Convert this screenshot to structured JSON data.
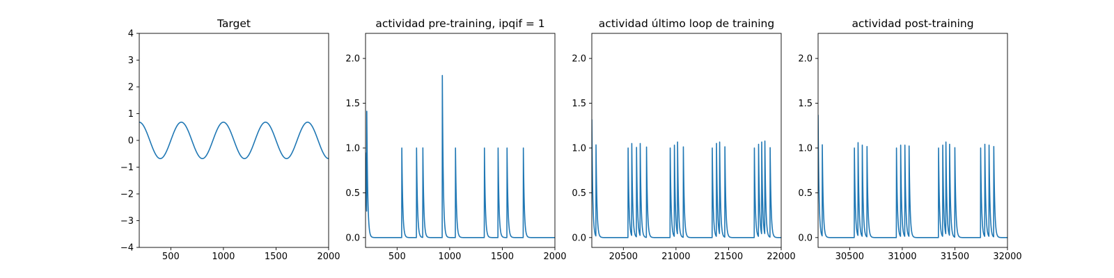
{
  "chart_data": [
    {
      "type": "line",
      "title": "Target",
      "xlim": [
        200,
        2000
      ],
      "ylim": [
        -4,
        4
      ],
      "xticks": [
        500,
        1000,
        1500,
        2000
      ],
      "yticks": [
        -4,
        -3,
        -2,
        -1,
        0,
        1,
        2,
        3,
        4
      ],
      "xlabel": "",
      "ylabel": "",
      "grid": false,
      "series": [
        {
          "color": "#1f77b4",
          "function": {
            "kind": "cosine",
            "amplitude": 0.68,
            "period": 400,
            "phase_x": 200
          }
        }
      ]
    },
    {
      "type": "line",
      "title": "actividad pre-training, ipqif = 1",
      "xlim": [
        200,
        2000
      ],
      "ylim": [
        -0.11,
        2.28
      ],
      "xticks": [
        500,
        1000,
        1500,
        2000
      ],
      "yticks": [
        0.0,
        0.5,
        1.0,
        1.5,
        2.0
      ],
      "xlabel": "",
      "ylabel": "",
      "grid": false,
      "series": [
        {
          "color": "#1f77b4",
          "spikes": [
            {
              "x": 200,
              "peak": 0.95
            },
            {
              "x": 212,
              "peak": 1.16
            },
            {
              "x": 545,
              "peak": 1.0
            },
            {
              "x": 685,
              "peak": 1.0
            },
            {
              "x": 745,
              "peak": 1.0
            },
            {
              "x": 930,
              "peak": 1.81
            },
            {
              "x": 1055,
              "peak": 1.0
            },
            {
              "x": 1330,
              "peak": 1.0
            },
            {
              "x": 1460,
              "peak": 1.0
            },
            {
              "x": 1545,
              "peak": 1.0
            },
            {
              "x": 1700,
              "peak": 1.0
            }
          ]
        }
      ]
    },
    {
      "type": "line",
      "title": "actividad último loop de training",
      "xlim": [
        20200,
        22000
      ],
      "ylim": [
        -0.11,
        2.28
      ],
      "xticks": [
        20500,
        21000,
        21500,
        22000
      ],
      "yticks": [
        0.0,
        0.5,
        1.0,
        1.5,
        2.0
      ],
      "xlabel": "",
      "ylabel": "",
      "grid": false,
      "series": [
        {
          "color": "#1f77b4",
          "spikes": [
            {
              "x": 20200,
              "peak": 1.32
            },
            {
              "x": 20240,
              "peak": 1.02
            },
            {
              "x": 20545,
              "peak": 1.0
            },
            {
              "x": 20580,
              "peak": 1.03
            },
            {
              "x": 20625,
              "peak": 1.0
            },
            {
              "x": 20660,
              "peak": 1.03
            },
            {
              "x": 20720,
              "peak": 1.01
            },
            {
              "x": 20945,
              "peak": 1.0
            },
            {
              "x": 20985,
              "peak": 1.02
            },
            {
              "x": 21015,
              "peak": 1.03
            },
            {
              "x": 21070,
              "peak": 1.01
            },
            {
              "x": 21345,
              "peak": 1.0
            },
            {
              "x": 21385,
              "peak": 1.04
            },
            {
              "x": 21415,
              "peak": 1.03
            },
            {
              "x": 21465,
              "peak": 1.01
            },
            {
              "x": 21745,
              "peak": 1.0
            },
            {
              "x": 21785,
              "peak": 1.03
            },
            {
              "x": 21815,
              "peak": 1.03
            },
            {
              "x": 21845,
              "peak": 1.04
            },
            {
              "x": 21895,
              "peak": 1.0
            }
          ]
        }
      ]
    },
    {
      "type": "line",
      "title": "actividad post-training",
      "xlim": [
        30200,
        32000
      ],
      "ylim": [
        -0.11,
        2.28
      ],
      "xticks": [
        30500,
        31000,
        31500,
        32000
      ],
      "yticks": [
        0.0,
        0.5,
        1.0,
        1.5,
        2.0
      ],
      "xlabel": "",
      "ylabel": "",
      "grid": false,
      "series": [
        {
          "color": "#1f77b4",
          "spikes": [
            {
              "x": 30200,
              "peak": 1.37
            },
            {
              "x": 30240,
              "peak": 1.02
            },
            {
              "x": 30545,
              "peak": 1.0
            },
            {
              "x": 30580,
              "peak": 1.04
            },
            {
              "x": 30620,
              "peak": 1.02
            },
            {
              "x": 30665,
              "peak": 1.01
            },
            {
              "x": 30945,
              "peak": 1.0
            },
            {
              "x": 30985,
              "peak": 1.02
            },
            {
              "x": 31025,
              "peak": 1.02
            },
            {
              "x": 31065,
              "peak": 1.01
            },
            {
              "x": 31345,
              "peak": 1.0
            },
            {
              "x": 31385,
              "peak": 1.02
            },
            {
              "x": 31415,
              "peak": 1.03
            },
            {
              "x": 31450,
              "peak": 1.02
            },
            {
              "x": 31500,
              "peak": 1.0
            },
            {
              "x": 31745,
              "peak": 1.0
            },
            {
              "x": 31785,
              "peak": 1.03
            },
            {
              "x": 31825,
              "peak": 1.02
            },
            {
              "x": 31870,
              "peak": 1.01
            }
          ]
        }
      ]
    }
  ]
}
